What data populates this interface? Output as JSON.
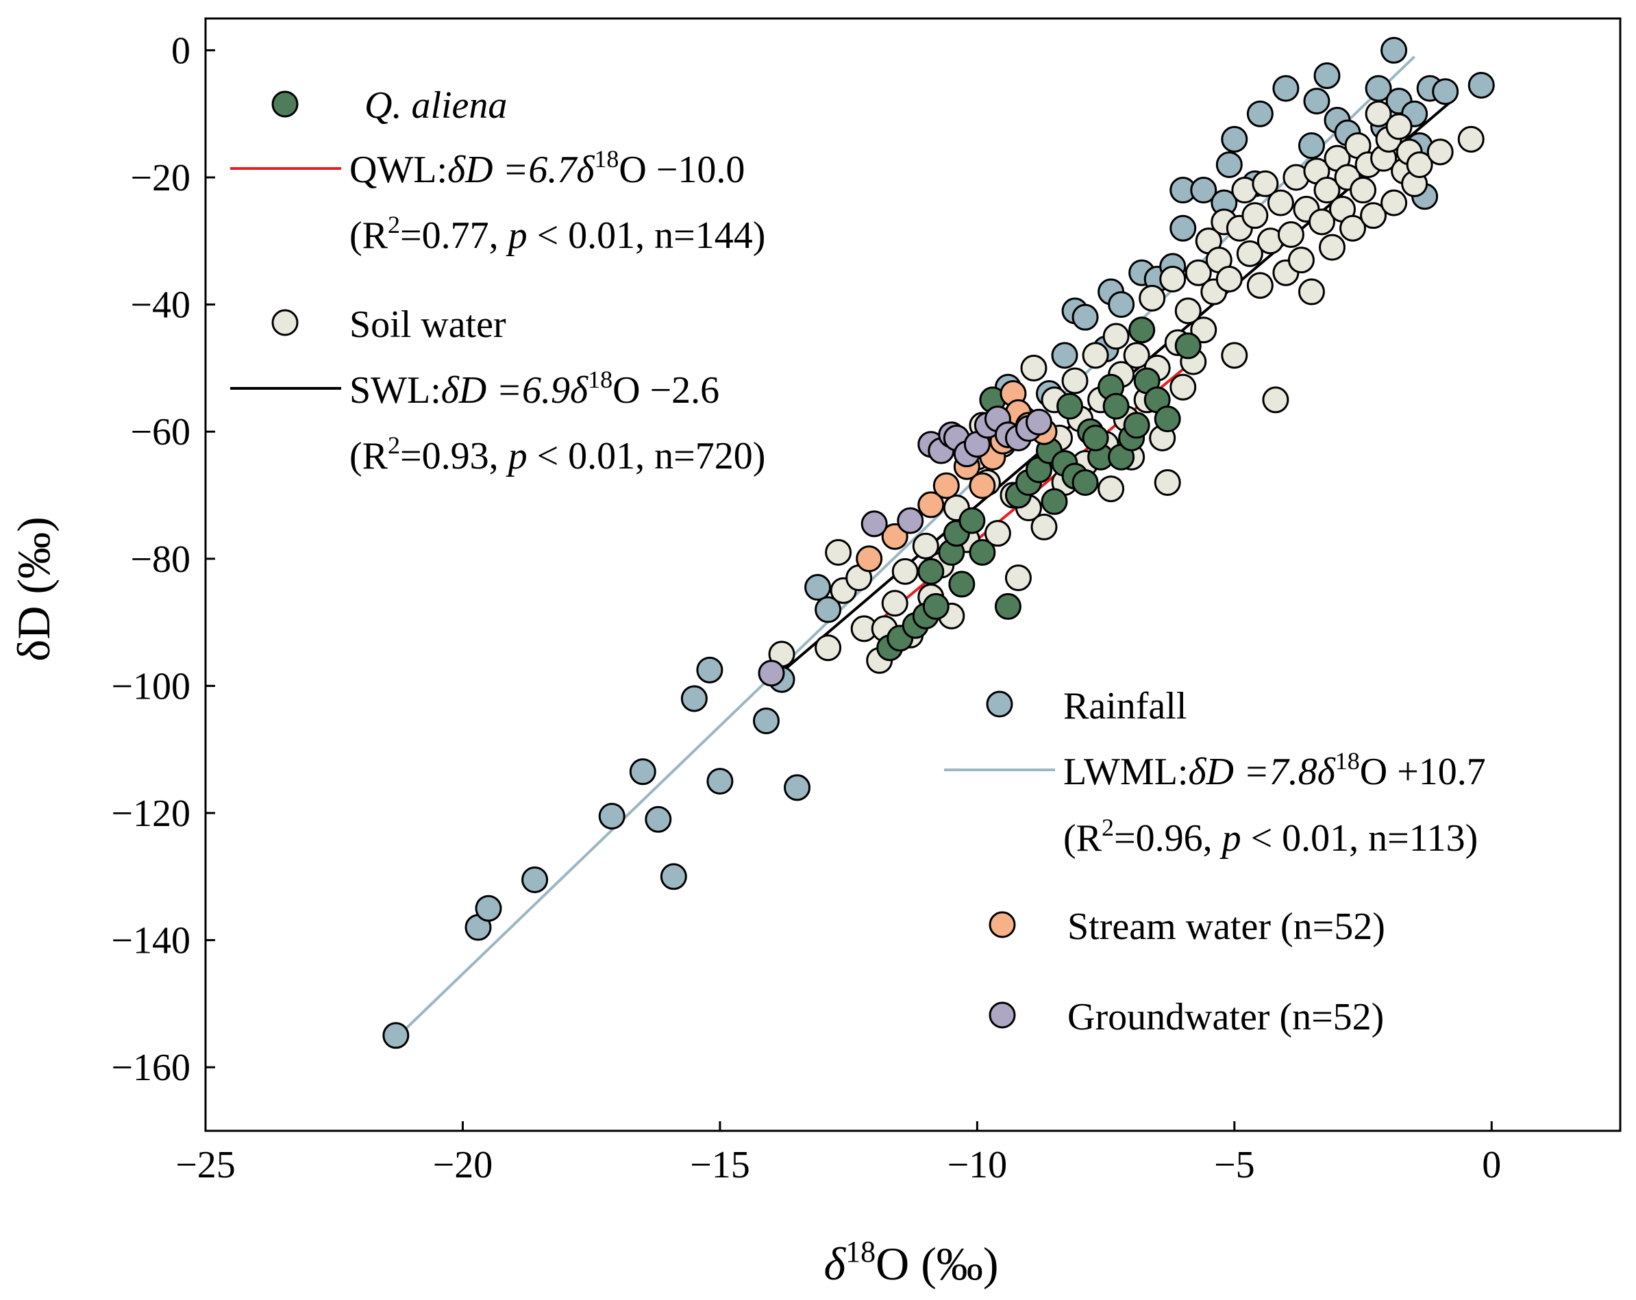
{
  "chart_data": {
    "type": "scatter",
    "xlabel_prefix": "δ",
    "xlabel_sup": "18",
    "xlabel_suffix": "O (‰)",
    "ylabel": "δD (‰)",
    "xlim": [
      -25,
      2.5
    ],
    "ylim": [
      -170,
      5
    ],
    "xticks": [
      -25,
      -20,
      -15,
      -10,
      -5,
      0
    ],
    "xtick_labels": [
      "−25",
      "−20",
      "−15",
      "−10",
      "−5",
      "0"
    ],
    "yticks": [
      0,
      -20,
      -40,
      -60,
      -80,
      -100,
      -120,
      -140,
      -160
    ],
    "ytick_labels": [
      "0",
      "−20",
      "−40",
      "−60",
      "−80",
      "−100",
      "−120",
      "−140",
      "−160"
    ],
    "colors": {
      "qaliena": "#4f7d5a",
      "soil": "#e9e8dd",
      "rain": "#9bb7c2",
      "stream": "#f6b189",
      "ground": "#aea7c3",
      "qwl_line": "#ee1c1c",
      "swl_line": "#000000",
      "lwml_line": "#9bb7c2"
    },
    "series": [
      {
        "name": "Rainfall",
        "key": "rain",
        "points": [
          [
            -21.3,
            -155
          ],
          [
            -19.7,
            -138
          ],
          [
            -19.5,
            -135
          ],
          [
            -18.6,
            -130.5
          ],
          [
            -17.1,
            -120.5
          ],
          [
            -16.5,
            -113.5
          ],
          [
            -16.2,
            -121
          ],
          [
            -15.9,
            -130
          ],
          [
            -15.5,
            -102
          ],
          [
            -15.2,
            -97.5
          ],
          [
            -15.0,
            -115
          ],
          [
            -14.1,
            -105.5
          ],
          [
            -13.8,
            -99
          ],
          [
            -13.5,
            -116
          ],
          [
            -13.1,
            -84.5
          ],
          [
            -12.9,
            -88
          ],
          [
            -9.4,
            -53
          ],
          [
            -8.6,
            -54
          ],
          [
            -8.3,
            -48
          ],
          [
            -8.1,
            -41
          ],
          [
            -7.9,
            -42
          ],
          [
            -7.5,
            -47
          ],
          [
            -7.4,
            -38
          ],
          [
            -7.2,
            -40
          ],
          [
            -6.8,
            -35
          ],
          [
            -6.5,
            -36
          ],
          [
            -6.2,
            -34
          ],
          [
            -6.0,
            -22
          ],
          [
            -6.0,
            -28
          ],
          [
            -5.6,
            -22
          ],
          [
            -5.5,
            -30
          ],
          [
            -5.0,
            -14
          ],
          [
            -5.1,
            -18
          ],
          [
            -5.2,
            -24
          ],
          [
            -4.6,
            -21
          ],
          [
            -4.5,
            -10
          ],
          [
            -4.0,
            -6
          ],
          [
            -3.5,
            -15
          ],
          [
            -3.4,
            -8
          ],
          [
            -3.2,
            -4
          ],
          [
            -3.0,
            -11
          ],
          [
            -2.8,
            -13
          ],
          [
            -2.2,
            -6
          ],
          [
            -2.1,
            -12
          ],
          [
            -1.9,
            0
          ],
          [
            -1.8,
            -8
          ],
          [
            -1.5,
            -10
          ],
          [
            -1.4,
            -15
          ],
          [
            -1.3,
            -23
          ],
          [
            -1.2,
            -6
          ],
          [
            -0.9,
            -6.5
          ],
          [
            -0.2,
            -5.5
          ]
        ]
      },
      {
        "name": "Soil water",
        "key": "soil",
        "points": [
          [
            -13.8,
            -95
          ],
          [
            -12.9,
            -94
          ],
          [
            -12.7,
            -79
          ],
          [
            -12.6,
            -85
          ],
          [
            -12.3,
            -83
          ],
          [
            -12.2,
            -91
          ],
          [
            -11.9,
            -96
          ],
          [
            -11.8,
            -91
          ],
          [
            -11.6,
            -87
          ],
          [
            -11.4,
            -82
          ],
          [
            -11.3,
            -92
          ],
          [
            -11.0,
            -78
          ],
          [
            -10.9,
            -86
          ],
          [
            -10.7,
            -81
          ],
          [
            -10.5,
            -89
          ],
          [
            -10.4,
            -72
          ],
          [
            -10.2,
            -77
          ],
          [
            -10.0,
            -64
          ],
          [
            -9.9,
            -59
          ],
          [
            -9.8,
            -68
          ],
          [
            -9.6,
            -76
          ],
          [
            -9.5,
            -62
          ],
          [
            -9.3,
            -70
          ],
          [
            -9.2,
            -83
          ],
          [
            -9.1,
            -58
          ],
          [
            -9.0,
            -72
          ],
          [
            -8.9,
            -50
          ],
          [
            -8.8,
            -66
          ],
          [
            -8.7,
            -75
          ],
          [
            -8.5,
            -55
          ],
          [
            -8.4,
            -61
          ],
          [
            -8.3,
            -68
          ],
          [
            -8.1,
            -52
          ],
          [
            -8.0,
            -58
          ],
          [
            -7.9,
            -65
          ],
          [
            -7.7,
            -48
          ],
          [
            -7.6,
            -55
          ],
          [
            -7.5,
            -62
          ],
          [
            -7.4,
            -69
          ],
          [
            -7.3,
            -45
          ],
          [
            -7.2,
            -51
          ],
          [
            -7.1,
            -58
          ],
          [
            -7.0,
            -64
          ],
          [
            -6.9,
            -48
          ],
          [
            -6.8,
            -44
          ],
          [
            -6.7,
            -55
          ],
          [
            -6.6,
            -39
          ],
          [
            -6.5,
            -50
          ],
          [
            -6.4,
            -61
          ],
          [
            -6.3,
            -68
          ],
          [
            -6.2,
            -36
          ],
          [
            -6.1,
            -46
          ],
          [
            -6.0,
            -53
          ],
          [
            -5.9,
            -41
          ],
          [
            -5.8,
            -49
          ],
          [
            -5.7,
            -35
          ],
          [
            -5.6,
            -44
          ],
          [
            -5.5,
            -30
          ],
          [
            -5.4,
            -38
          ],
          [
            -5.3,
            -33
          ],
          [
            -5.2,
            -27
          ],
          [
            -5.1,
            -36
          ],
          [
            -5.0,
            -48
          ],
          [
            -4.9,
            -28
          ],
          [
            -4.8,
            -22
          ],
          [
            -4.7,
            -32
          ],
          [
            -4.6,
            -26
          ],
          [
            -4.5,
            -37
          ],
          [
            -4.4,
            -21
          ],
          [
            -4.3,
            -30
          ],
          [
            -4.2,
            -55
          ],
          [
            -4.1,
            -24
          ],
          [
            -4.0,
            -35
          ],
          [
            -3.9,
            -29
          ],
          [
            -3.8,
            -20
          ],
          [
            -3.7,
            -33
          ],
          [
            -3.6,
            -25
          ],
          [
            -3.5,
            -38
          ],
          [
            -3.4,
            -19
          ],
          [
            -3.3,
            -27
          ],
          [
            -3.2,
            -22
          ],
          [
            -3.1,
            -31
          ],
          [
            -3.0,
            -17
          ],
          [
            -2.9,
            -25
          ],
          [
            -2.8,
            -20
          ],
          [
            -2.7,
            -28
          ],
          [
            -2.6,
            -15
          ],
          [
            -2.5,
            -22
          ],
          [
            -2.4,
            -18
          ],
          [
            -2.3,
            -26
          ],
          [
            -2.2,
            -10
          ],
          [
            -2.1,
            -17
          ],
          [
            -2.0,
            -14
          ],
          [
            -1.9,
            -24
          ],
          [
            -1.8,
            -12
          ],
          [
            -1.7,
            -19
          ],
          [
            -1.6,
            -16
          ],
          [
            -1.5,
            -21
          ],
          [
            -1.4,
            -18
          ],
          [
            -1.0,
            -16
          ],
          [
            -0.4,
            -14
          ]
        ]
      },
      {
        "name": "Q. aliena",
        "key": "qaliena",
        "points": [
          [
            -11.7,
            -94
          ],
          [
            -11.5,
            -92.5
          ],
          [
            -11.2,
            -90.5
          ],
          [
            -11.0,
            -89
          ],
          [
            -10.8,
            -87.5
          ],
          [
            -10.9,
            -82
          ],
          [
            -10.5,
            -79
          ],
          [
            -10.4,
            -76
          ],
          [
            -10.3,
            -84
          ],
          [
            -10.1,
            -74
          ],
          [
            -9.9,
            -79
          ],
          [
            -9.7,
            -55
          ],
          [
            -9.6,
            -60
          ],
          [
            -9.4,
            -87.5
          ],
          [
            -9.2,
            -70
          ],
          [
            -9.0,
            -68
          ],
          [
            -8.8,
            -66
          ],
          [
            -8.6,
            -63
          ],
          [
            -8.5,
            -71
          ],
          [
            -8.3,
            -65
          ],
          [
            -8.1,
            -67
          ],
          [
            -7.9,
            -68
          ],
          [
            -7.8,
            -60
          ],
          [
            -7.6,
            -64
          ],
          [
            -7.4,
            -53
          ],
          [
            -7.3,
            -56
          ],
          [
            -7.2,
            -64
          ],
          [
            -7.0,
            -61
          ],
          [
            -6.9,
            -59
          ],
          [
            -6.8,
            -44
          ],
          [
            -6.7,
            -52
          ],
          [
            -6.5,
            -55
          ],
          [
            -6.3,
            -58
          ],
          [
            -5.9,
            -46.5
          ],
          [
            -8.2,
            -56
          ],
          [
            -7.7,
            -61
          ],
          [
            -9.8,
            -62
          ]
        ]
      },
      {
        "name": "Stream water",
        "key": "stream",
        "points": [
          [
            -12.1,
            -80
          ],
          [
            -11.6,
            -76.5
          ],
          [
            -10.9,
            -71.5
          ],
          [
            -10.6,
            -68.5
          ],
          [
            -10.2,
            -65.5
          ],
          [
            -9.9,
            -68.5
          ],
          [
            -9.7,
            -64
          ],
          [
            -9.5,
            -61.5
          ],
          [
            -9.3,
            -54
          ],
          [
            -9.2,
            -57
          ],
          [
            -9.0,
            -59
          ],
          [
            -8.7,
            -60
          ]
        ]
      },
      {
        "name": "Groundwater",
        "key": "ground",
        "points": [
          [
            -14.0,
            -98
          ],
          [
            -12.0,
            -74.5
          ],
          [
            -11.3,
            -74
          ],
          [
            -10.9,
            -62
          ],
          [
            -10.7,
            -63
          ],
          [
            -10.5,
            -60.5
          ],
          [
            -10.4,
            -61
          ],
          [
            -10.2,
            -63.5
          ],
          [
            -10.0,
            -62
          ],
          [
            -9.8,
            -59
          ],
          [
            -9.6,
            -58
          ],
          [
            -9.4,
            -60.5
          ],
          [
            -9.2,
            -61
          ],
          [
            -9.0,
            -59.5
          ],
          [
            -8.8,
            -58.5
          ]
        ]
      }
    ],
    "lines": [
      {
        "name": "LWML",
        "key": "lwml_line",
        "slope": 7.8,
        "intercept": 10.7,
        "x_range": [
          -21.2,
          -1.5
        ]
      },
      {
        "name": "SWL",
        "key": "swl_line",
        "slope": 6.9,
        "intercept": -2.6,
        "x_range": [
          -13.8,
          -0.7
        ]
      },
      {
        "name": "QWL",
        "key": "qwl_line",
        "slope": 6.7,
        "intercept": -10.0,
        "x_range": [
          -11.9,
          -5.8
        ]
      }
    ],
    "legend": {
      "qaliena": {
        "label": "Q. aliena"
      },
      "qwl": {
        "prefix": "QWL:",
        "eq": "δD =6.7δ",
        "sup": "18",
        "rest": "O −10.0"
      },
      "qwl_stats": {
        "r": "(R",
        "sup": "2",
        "r_val": "=0.77, ",
        "p": "p",
        "rest": " < 0.01, n=144)"
      },
      "soil": {
        "label": "Soil water"
      },
      "swl": {
        "prefix": "SWL:",
        "eq": "δD =6.9δ",
        "sup": "18",
        "rest": "O −2.6"
      },
      "swl_stats": {
        "r": "(R",
        "sup": "2",
        "r_val": "=0.93, ",
        "p": "p",
        "rest": " < 0.01, n=720)"
      },
      "rain": {
        "label": "Rainfall"
      },
      "lwml": {
        "prefix": "LWML:",
        "eq": "δD =7.8δ",
        "sup": "18",
        "rest": "O +10.7"
      },
      "lwml_stats": {
        "r": "(R",
        "sup": "2",
        "r_val": "=0.96, ",
        "p": "p",
        "rest": " < 0.01, n=113)"
      },
      "stream": {
        "label": "Stream water (n=52)"
      },
      "ground": {
        "label": "Groundwater (n=52)"
      }
    }
  }
}
